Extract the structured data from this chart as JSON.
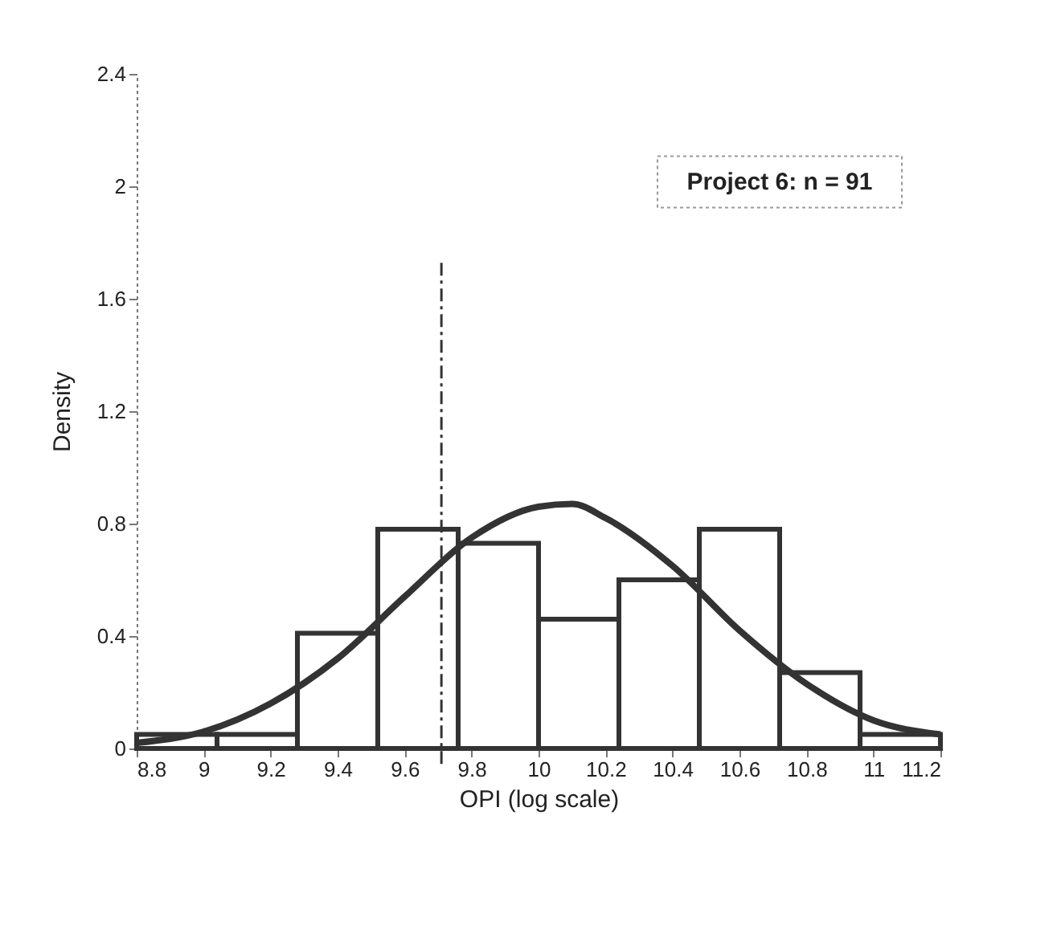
{
  "chart_data": {
    "type": "histogram",
    "xlabel": "OPI (log scale)",
    "ylabel": "Density",
    "bins": [
      8.8,
      9.04,
      9.28,
      9.52,
      9.76,
      10.0,
      10.24,
      10.48,
      10.72,
      10.96,
      11.2
    ],
    "values": [
      0.05,
      0.05,
      0.41,
      0.78,
      0.73,
      0.46,
      0.6,
      0.78,
      0.27,
      0.05
    ],
    "color": "#ffffff",
    "series": [
      {
        "type": "line",
        "x": [
          8.8,
          9.0,
          9.2,
          9.4,
          9.6,
          9.8,
          10.0,
          10.1,
          10.2,
          10.4,
          10.6,
          10.8,
          11.0,
          11.2
        ],
        "values": [
          0.02,
          0.06,
          0.16,
          0.32,
          0.54,
          0.75,
          0.86,
          0.87,
          0.82,
          0.65,
          0.42,
          0.23,
          0.1,
          0.05
        ],
        "color": "#333333"
      }
    ],
    "ref_lines": [
      {
        "axis": "x",
        "value": 9.71,
        "line_style": "dashed",
        "color": "#333333"
      }
    ],
    "annotations": [
      "Project 6: n = 91"
    ],
    "xlim": [
      8.8,
      11.2
    ],
    "xticks": [
      8.8,
      9,
      9.2,
      9.4,
      9.6,
      9.8,
      10,
      10.2,
      10.4,
      10.6,
      10.8,
      11,
      11.2
    ],
    "ylim": [
      0,
      2.4
    ],
    "yticks": [
      0,
      0.4,
      0.8,
      1.2,
      1.6,
      2,
      2.4
    ],
    "grid": false
  }
}
